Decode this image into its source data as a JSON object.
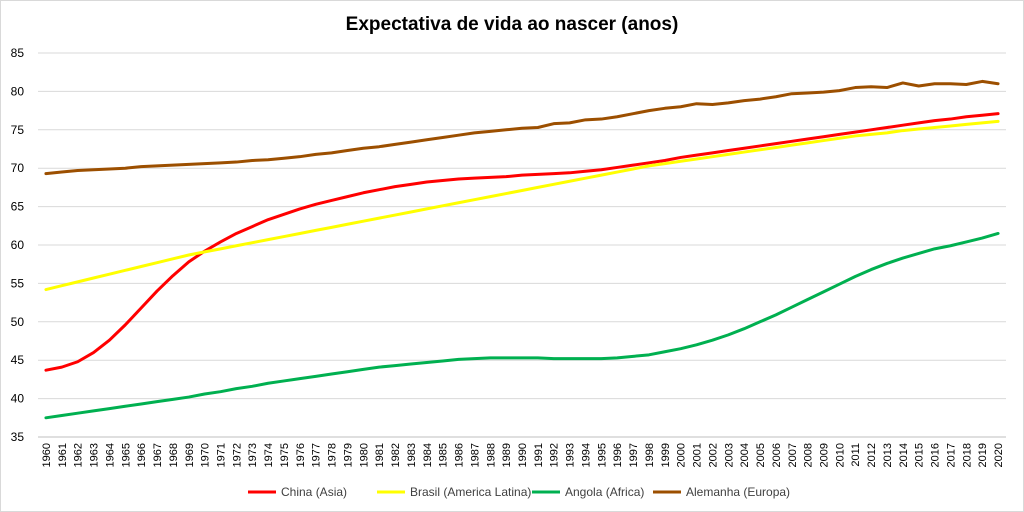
{
  "chart_data": {
    "type": "line",
    "title": "Expectativa de vida ao nascer (anos)",
    "xlabel": "",
    "ylabel": "",
    "ylim": [
      35,
      85
    ],
    "yticks": [
      35,
      40,
      45,
      50,
      55,
      60,
      65,
      70,
      75,
      80,
      85
    ],
    "grid": true,
    "legend_position": "bottom",
    "x": [
      1960,
      1961,
      1962,
      1963,
      1964,
      1965,
      1966,
      1967,
      1968,
      1969,
      1970,
      1971,
      1972,
      1973,
      1974,
      1975,
      1976,
      1977,
      1978,
      1979,
      1980,
      1981,
      1982,
      1983,
      1984,
      1985,
      1986,
      1987,
      1988,
      1989,
      1990,
      1991,
      1992,
      1993,
      1994,
      1995,
      1996,
      1997,
      1998,
      1999,
      2000,
      2001,
      2002,
      2003,
      2004,
      2005,
      2006,
      2007,
      2008,
      2009,
      2010,
      2011,
      2012,
      2013,
      2014,
      2015,
      2016,
      2017,
      2018,
      2019,
      2020
    ],
    "series": [
      {
        "name": "China (Asia)",
        "color": "#ff0000",
        "values": [
          43.7,
          44.1,
          44.8,
          46.0,
          47.6,
          49.6,
          51.8,
          54.0,
          56.0,
          57.8,
          59.2,
          60.4,
          61.5,
          62.4,
          63.3,
          64.0,
          64.7,
          65.3,
          65.8,
          66.3,
          66.8,
          67.2,
          67.6,
          67.9,
          68.2,
          68.4,
          68.6,
          68.7,
          68.8,
          68.9,
          69.1,
          69.2,
          69.3,
          69.4,
          69.6,
          69.8,
          70.1,
          70.4,
          70.7,
          71.0,
          71.4,
          71.7,
          72.0,
          72.3,
          72.6,
          72.9,
          73.2,
          73.5,
          73.8,
          74.1,
          74.4,
          74.7,
          75.0,
          75.3,
          75.6,
          75.9,
          76.2,
          76.4,
          76.7,
          76.9,
          77.1
        ]
      },
      {
        "name": "Brasil (America Latina)",
        "color": "#ffff00",
        "values": [
          54.2,
          54.7,
          55.2,
          55.7,
          56.2,
          56.7,
          57.2,
          57.7,
          58.2,
          58.7,
          59.1,
          59.5,
          59.9,
          60.3,
          60.7,
          61.1,
          61.5,
          61.9,
          62.3,
          62.7,
          63.1,
          63.5,
          63.9,
          64.3,
          64.7,
          65.1,
          65.5,
          65.9,
          66.3,
          66.7,
          67.1,
          67.5,
          67.9,
          68.3,
          68.7,
          69.1,
          69.5,
          69.9,
          70.3,
          70.6,
          70.9,
          71.2,
          71.5,
          71.8,
          72.1,
          72.4,
          72.7,
          73.0,
          73.3,
          73.6,
          73.9,
          74.2,
          74.4,
          74.6,
          74.9,
          75.1,
          75.3,
          75.5,
          75.7,
          75.9,
          76.1
        ]
      },
      {
        "name": "Angola (Africa)",
        "color": "#00b050",
        "values": [
          37.5,
          37.8,
          38.1,
          38.4,
          38.7,
          39.0,
          39.3,
          39.6,
          39.9,
          40.2,
          40.6,
          40.9,
          41.3,
          41.6,
          42.0,
          42.3,
          42.6,
          42.9,
          43.2,
          43.5,
          43.8,
          44.1,
          44.3,
          44.5,
          44.7,
          44.9,
          45.1,
          45.2,
          45.3,
          45.3,
          45.3,
          45.3,
          45.2,
          45.2,
          45.2,
          45.2,
          45.3,
          45.5,
          45.7,
          46.1,
          46.5,
          47.0,
          47.6,
          48.3,
          49.1,
          50.0,
          50.9,
          51.9,
          52.9,
          53.9,
          54.9,
          55.9,
          56.8,
          57.6,
          58.3,
          58.9,
          59.5,
          59.9,
          60.4,
          60.9,
          61.5
        ]
      },
      {
        "name": "Alemanha (Europa)",
        "color": "#9c4f00",
        "values": [
          69.3,
          69.5,
          69.7,
          69.8,
          69.9,
          70.0,
          70.2,
          70.3,
          70.4,
          70.5,
          70.6,
          70.7,
          70.8,
          71.0,
          71.1,
          71.3,
          71.5,
          71.8,
          72.0,
          72.3,
          72.6,
          72.8,
          73.1,
          73.4,
          73.7,
          74.0,
          74.3,
          74.6,
          74.8,
          75.0,
          75.2,
          75.3,
          75.8,
          75.9,
          76.3,
          76.4,
          76.7,
          77.1,
          77.5,
          77.8,
          78.0,
          78.4,
          78.3,
          78.5,
          78.8,
          79.0,
          79.3,
          79.7,
          79.8,
          79.9,
          80.1,
          80.5,
          80.6,
          80.5,
          81.1,
          80.7,
          81.0,
          81.0,
          80.9,
          81.3,
          81.0
        ]
      }
    ]
  }
}
